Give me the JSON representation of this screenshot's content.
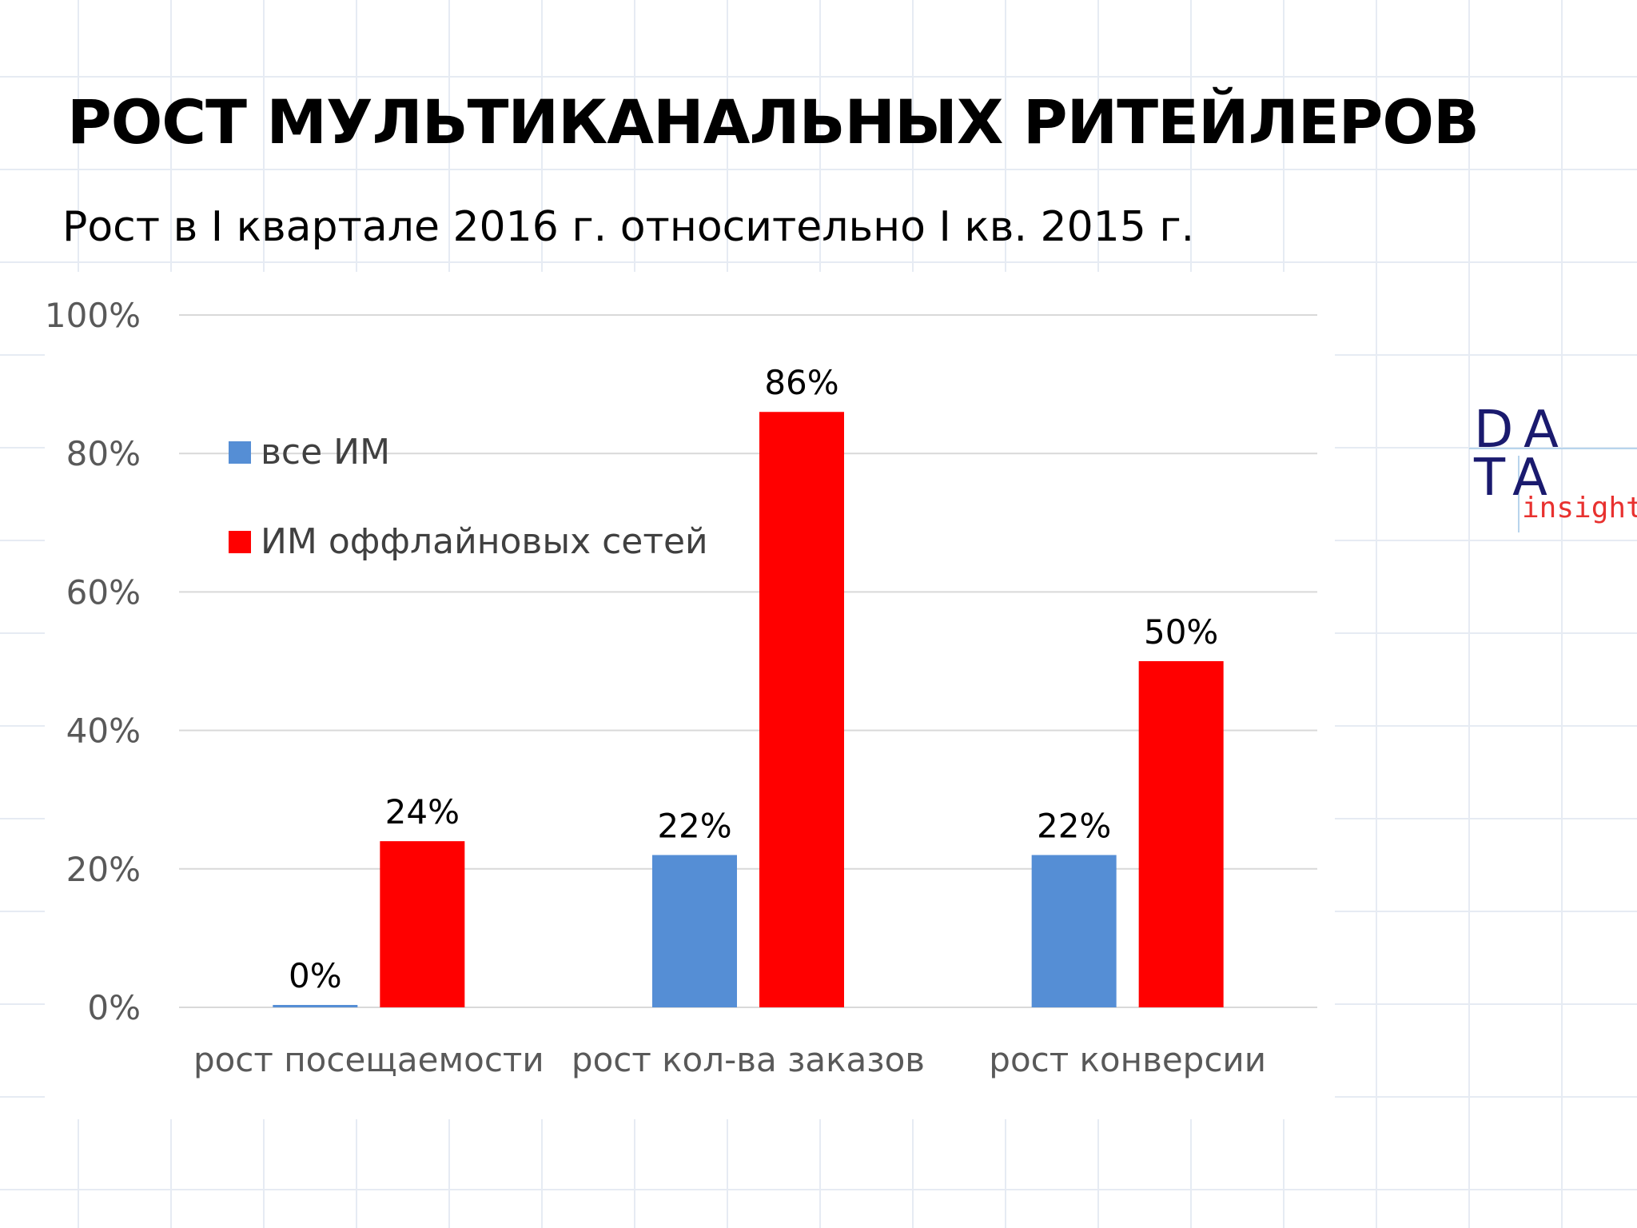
{
  "title": "РОСТ МУЛЬТИКАНАЛЬНЫХ РИТЕЙЛЕРОВ",
  "subtitle": "Рост в I квартале 2016 г. относительно I кв. 2015 г.",
  "logo": {
    "row1": "DA",
    "row2": "TA",
    "tagline": "insight",
    "colors": {
      "letters": "#1a1a6e",
      "tagline": "#e8312f"
    }
  },
  "chart_data": {
    "type": "bar",
    "categories": [
      "рост посещаемости",
      "рост кол-ва заказов",
      "рост конверсии"
    ],
    "series": [
      {
        "name": "все ИМ",
        "values": [
          0,
          22,
          22
        ],
        "labels": [
          "0%",
          "22%",
          "22%"
        ],
        "color": "#558ed5"
      },
      {
        "name": "ИМ оффлайновых сетей",
        "values": [
          24,
          86,
          50
        ],
        "labels": [
          "24%",
          "86%",
          "50%"
        ],
        "color": "#ff0000"
      }
    ],
    "ylim": [
      0,
      100
    ],
    "yticks": [
      0,
      20,
      40,
      60,
      80,
      100
    ],
    "ytick_labels": [
      "0%",
      "20%",
      "40%",
      "60%",
      "80%",
      "100%"
    ],
    "grid": true,
    "legend_position": "top-left",
    "xlabel": "",
    "ylabel": ""
  }
}
